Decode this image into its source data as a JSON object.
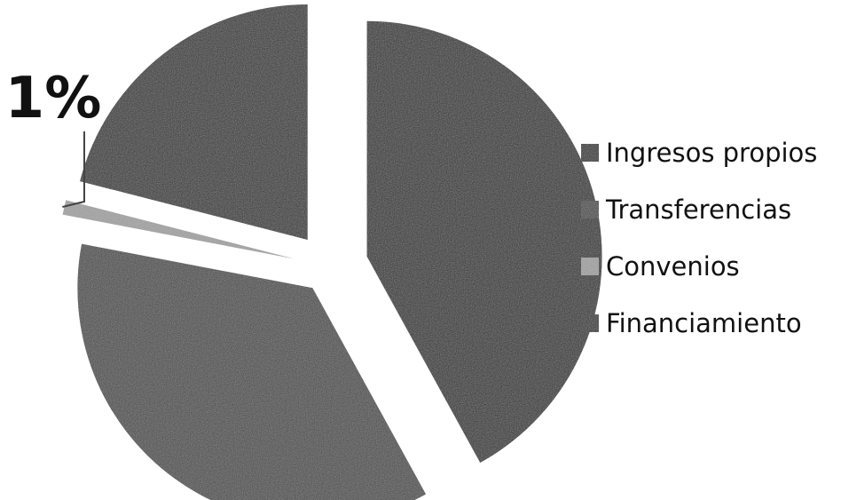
{
  "chart_data": {
    "type": "pie",
    "categories": [
      "Ingresos propios",
      "Transferencias",
      "Convenios",
      "Financiamiento"
    ],
    "values": [
      42,
      36,
      1,
      21
    ],
    "colors": [
      "#2a2a2a",
      "#464646",
      "#9a9a9a",
      "#2e2e2e"
    ],
    "data_labels": [
      "",
      "",
      "1%",
      ""
    ],
    "legend_position": "right",
    "exploded": true,
    "start_angle_deg": -90
  }
}
